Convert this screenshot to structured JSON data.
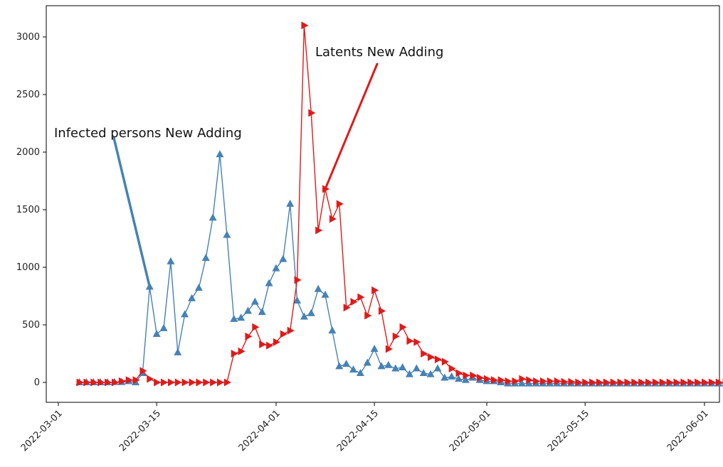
{
  "chart_data": {
    "type": "line",
    "x_start": "2022-03-04",
    "x_step": "1 day",
    "xlim": [
      "2022-03-01",
      "2022-06-02"
    ],
    "ylim": [
      -150,
      3250
    ],
    "yticks": [
      0,
      500,
      1000,
      1500,
      2000,
      2500,
      3000
    ],
    "ytick_labels": [
      "0",
      "500",
      "1000",
      "1500",
      "2000",
      "2500",
      "3000"
    ],
    "xticks": [
      "2022-03-01",
      "2022-03-15",
      "2022-04-01",
      "2022-04-15",
      "2022-05-01",
      "2022-05-15",
      "2022-06-01"
    ],
    "xtick_labels": [
      "2022-03-01",
      "2022-03-15",
      "2022-04-01",
      "2022-04-15",
      "2022-05-01",
      "2022-05-15",
      "2022-06-01"
    ],
    "grid": false,
    "series": [
      {
        "name": "Infected persons New Adding",
        "color": "#4682b4",
        "marker": "triangle-up",
        "values": [
          0,
          0,
          0,
          0,
          0,
          2,
          2,
          10,
          0,
          80,
          830,
          420,
          470,
          1050,
          260,
          590,
          730,
          820,
          1080,
          1430,
          1980,
          1280,
          550,
          560,
          620,
          700,
          610,
          860,
          990,
          1070,
          1550,
          710,
          570,
          600,
          810,
          760,
          450,
          140,
          160,
          110,
          80,
          170,
          290,
          140,
          150,
          120,
          130,
          70,
          120,
          80,
          70,
          120,
          40,
          50,
          30,
          20,
          40,
          20,
          10,
          10,
          0,
          -10,
          -10,
          -10,
          -10,
          -10,
          -10,
          -10,
          -10,
          -10,
          -10,
          -10,
          -10,
          -10,
          -10,
          -10,
          -10,
          -10,
          -10,
          -10,
          -10,
          -10,
          -10,
          -10,
          -10,
          -10,
          -10,
          -10,
          -10,
          -10,
          -10,
          -10,
          -10
        ]
      },
      {
        "name": "Latents New Adding",
        "color": "#e01a1a",
        "marker": "triangle-right",
        "values": [
          0,
          0,
          0,
          0,
          0,
          0,
          10,
          20,
          20,
          100,
          30,
          0,
          0,
          0,
          0,
          0,
          0,
          0,
          0,
          0,
          0,
          0,
          250,
          270,
          400,
          480,
          330,
          320,
          350,
          420,
          450,
          890,
          3100,
          2340,
          1320,
          1680,
          1420,
          1550,
          650,
          700,
          740,
          580,
          800,
          620,
          290,
          400,
          480,
          360,
          350,
          250,
          220,
          200,
          180,
          120,
          80,
          60,
          60,
          40,
          30,
          20,
          20,
          10,
          10,
          30,
          20,
          10,
          10,
          10,
          10,
          5,
          5,
          0,
          0,
          0,
          0,
          0,
          0,
          0,
          0,
          0,
          0,
          0,
          0,
          0,
          0,
          0,
          0,
          0,
          0,
          0,
          0,
          0,
          0
        ]
      }
    ],
    "annotations": [
      {
        "text": "Infected persons New Adding",
        "series": "Infected persons New Adding",
        "arrow_to_index": 10
      },
      {
        "text": "Latents New Adding",
        "series": "Latents New Adding",
        "arrow_to_index": 35
      }
    ]
  }
}
